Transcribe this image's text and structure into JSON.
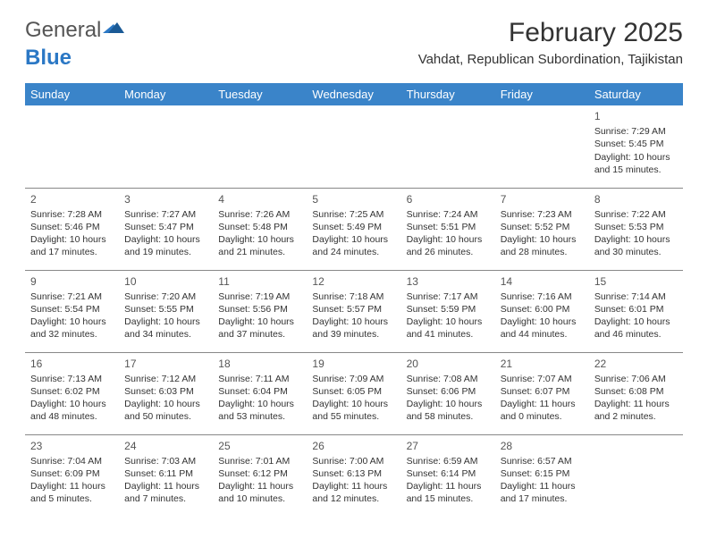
{
  "logo": {
    "text_gray": "General",
    "text_blue": "Blue"
  },
  "title": "February 2025",
  "location": "Vahdat, Republican Subordination, Tajikistan",
  "colors": {
    "header_bg": "#3a84c9",
    "header_text": "#ffffff",
    "border": "#888888",
    "logo_gray": "#555555",
    "logo_blue": "#2b78c5"
  },
  "weekdays": [
    "Sunday",
    "Monday",
    "Tuesday",
    "Wednesday",
    "Thursday",
    "Friday",
    "Saturday"
  ],
  "weeks": [
    [
      null,
      null,
      null,
      null,
      null,
      null,
      {
        "d": "1",
        "sr": "7:29 AM",
        "ss": "5:45 PM",
        "dl": "10 hours and 15 minutes."
      }
    ],
    [
      {
        "d": "2",
        "sr": "7:28 AM",
        "ss": "5:46 PM",
        "dl": "10 hours and 17 minutes."
      },
      {
        "d": "3",
        "sr": "7:27 AM",
        "ss": "5:47 PM",
        "dl": "10 hours and 19 minutes."
      },
      {
        "d": "4",
        "sr": "7:26 AM",
        "ss": "5:48 PM",
        "dl": "10 hours and 21 minutes."
      },
      {
        "d": "5",
        "sr": "7:25 AM",
        "ss": "5:49 PM",
        "dl": "10 hours and 24 minutes."
      },
      {
        "d": "6",
        "sr": "7:24 AM",
        "ss": "5:51 PM",
        "dl": "10 hours and 26 minutes."
      },
      {
        "d": "7",
        "sr": "7:23 AM",
        "ss": "5:52 PM",
        "dl": "10 hours and 28 minutes."
      },
      {
        "d": "8",
        "sr": "7:22 AM",
        "ss": "5:53 PM",
        "dl": "10 hours and 30 minutes."
      }
    ],
    [
      {
        "d": "9",
        "sr": "7:21 AM",
        "ss": "5:54 PM",
        "dl": "10 hours and 32 minutes."
      },
      {
        "d": "10",
        "sr": "7:20 AM",
        "ss": "5:55 PM",
        "dl": "10 hours and 34 minutes."
      },
      {
        "d": "11",
        "sr": "7:19 AM",
        "ss": "5:56 PM",
        "dl": "10 hours and 37 minutes."
      },
      {
        "d": "12",
        "sr": "7:18 AM",
        "ss": "5:57 PM",
        "dl": "10 hours and 39 minutes."
      },
      {
        "d": "13",
        "sr": "7:17 AM",
        "ss": "5:59 PM",
        "dl": "10 hours and 41 minutes."
      },
      {
        "d": "14",
        "sr": "7:16 AM",
        "ss": "6:00 PM",
        "dl": "10 hours and 44 minutes."
      },
      {
        "d": "15",
        "sr": "7:14 AM",
        "ss": "6:01 PM",
        "dl": "10 hours and 46 minutes."
      }
    ],
    [
      {
        "d": "16",
        "sr": "7:13 AM",
        "ss": "6:02 PM",
        "dl": "10 hours and 48 minutes."
      },
      {
        "d": "17",
        "sr": "7:12 AM",
        "ss": "6:03 PM",
        "dl": "10 hours and 50 minutes."
      },
      {
        "d": "18",
        "sr": "7:11 AM",
        "ss": "6:04 PM",
        "dl": "10 hours and 53 minutes."
      },
      {
        "d": "19",
        "sr": "7:09 AM",
        "ss": "6:05 PM",
        "dl": "10 hours and 55 minutes."
      },
      {
        "d": "20",
        "sr": "7:08 AM",
        "ss": "6:06 PM",
        "dl": "10 hours and 58 minutes."
      },
      {
        "d": "21",
        "sr": "7:07 AM",
        "ss": "6:07 PM",
        "dl": "11 hours and 0 minutes."
      },
      {
        "d": "22",
        "sr": "7:06 AM",
        "ss": "6:08 PM",
        "dl": "11 hours and 2 minutes."
      }
    ],
    [
      {
        "d": "23",
        "sr": "7:04 AM",
        "ss": "6:09 PM",
        "dl": "11 hours and 5 minutes."
      },
      {
        "d": "24",
        "sr": "7:03 AM",
        "ss": "6:11 PM",
        "dl": "11 hours and 7 minutes."
      },
      {
        "d": "25",
        "sr": "7:01 AM",
        "ss": "6:12 PM",
        "dl": "11 hours and 10 minutes."
      },
      {
        "d": "26",
        "sr": "7:00 AM",
        "ss": "6:13 PM",
        "dl": "11 hours and 12 minutes."
      },
      {
        "d": "27",
        "sr": "6:59 AM",
        "ss": "6:14 PM",
        "dl": "11 hours and 15 minutes."
      },
      {
        "d": "28",
        "sr": "6:57 AM",
        "ss": "6:15 PM",
        "dl": "11 hours and 17 minutes."
      },
      null
    ]
  ],
  "labels": {
    "sunrise": "Sunrise: ",
    "sunset": "Sunset: ",
    "daylight": "Daylight: "
  }
}
